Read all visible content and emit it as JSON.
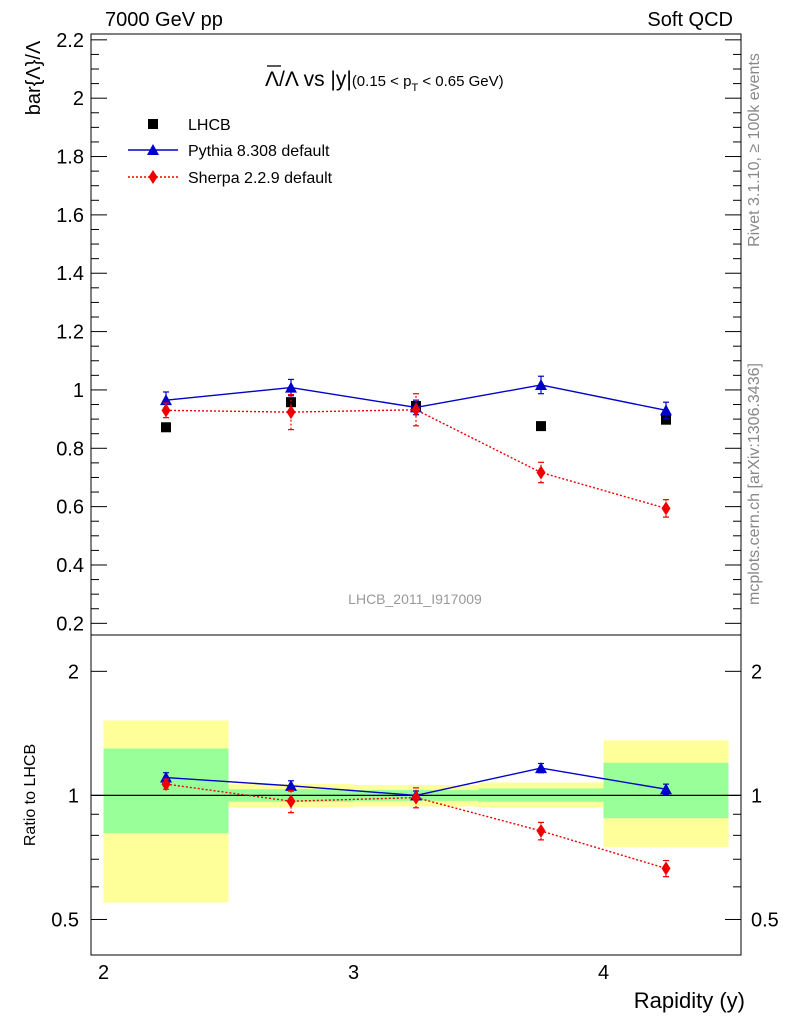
{
  "header": {
    "energy_label": "7000 GeV pp",
    "category_label": "Soft QCD"
  },
  "side_labels": {
    "rivet": "Rivet 3.1.10, ≥ 100k events",
    "mcplots": "mcplots.cern.ch [arXiv:1306.3436]"
  },
  "watermark": "LHCB_2011_I917009",
  "colors": {
    "data": "#000000",
    "pythia": "#0000cc",
    "sherpa": "#ee0000",
    "band_inner": "#99ff99",
    "band_outer": "#ffff99",
    "watermark": "#999999"
  },
  "chart_data": [
    {
      "panel": "main",
      "type": "scatter",
      "title_main": "Λ/Λ vs |y|",
      "title_cut": "(0.15 < p",
      "title_cut_sub": "T",
      "title_cut_end": " < 0.65 GeV)",
      "ylabel": "bar{Λ}/Λ",
      "ylim": [
        0.16,
        2.22
      ],
      "yticks": [
        0.2,
        0.4,
        0.6,
        0.8,
        1,
        1.2,
        1.4,
        1.6,
        1.8,
        2,
        2.2
      ],
      "yticks_text": [
        "0.2",
        "0.4",
        "0.6",
        "0.8",
        "1",
        "1.2",
        "1.4",
        "1.6",
        "1.8",
        "2",
        "2.2"
      ],
      "xlim": [
        1.95,
        4.55
      ],
      "series": [
        {
          "name": "LHCB",
          "style": "square",
          "x": [
            2.25,
            2.75,
            3.25,
            3.75,
            4.25
          ],
          "values": [
            0.872,
            0.958,
            0.945,
            0.876,
            0.898
          ]
        },
        {
          "name": "Pythia 8.308 default",
          "style": "triangle",
          "x": [
            2.25,
            2.75,
            3.25,
            3.75,
            4.25
          ],
          "values": [
            0.965,
            1.008,
            0.94,
            1.017,
            0.93
          ],
          "err": [
            0.028,
            0.028,
            0.025,
            0.03,
            0.028
          ]
        },
        {
          "name": "Sherpa 2.2.9 default",
          "style": "diamond",
          "x": [
            2.25,
            2.75,
            3.25,
            3.75,
            4.25
          ],
          "values": [
            0.93,
            0.924,
            0.932,
            0.717,
            0.594
          ],
          "err": [
            0.025,
            0.06,
            0.055,
            0.035,
            0.03
          ]
        }
      ]
    },
    {
      "panel": "ratio",
      "type": "scatter",
      "ylabel": "Ratio to LHCB",
      "xlabel": "Rapidity (y)",
      "ylim": [
        0.41,
        2.45
      ],
      "yscale": "log",
      "yticks": [
        0.5,
        1,
        2
      ],
      "yticks_text": [
        "0.5",
        "1",
        "2"
      ],
      "xlim": [
        1.95,
        4.55
      ],
      "xticks": [
        2,
        3,
        4
      ],
      "xticks_text": [
        "2",
        "3",
        "4"
      ],
      "bands": [
        {
          "xlo": 2.0,
          "xhi": 2.5,
          "inner": [
            0.81,
            1.3
          ],
          "outer": [
            0.55,
            1.52
          ]
        },
        {
          "xlo": 2.5,
          "xhi": 3.0,
          "inner": [
            0.965,
            1.035
          ],
          "outer": [
            0.935,
            1.065
          ]
        },
        {
          "xlo": 3.0,
          "xhi": 3.5,
          "inner": [
            0.97,
            1.03
          ],
          "outer": [
            0.94,
            1.06
          ]
        },
        {
          "xlo": 3.5,
          "xhi": 4.0,
          "inner": [
            0.965,
            1.04
          ],
          "outer": [
            0.935,
            1.075
          ]
        },
        {
          "xlo": 4.0,
          "xhi": 4.5,
          "inner": [
            0.88,
            1.2
          ],
          "outer": [
            0.75,
            1.36
          ]
        }
      ],
      "series": [
        {
          "name": "Pythia 8.308 default",
          "style": "triangle",
          "x": [
            2.25,
            2.75,
            3.25,
            3.75,
            4.25
          ],
          "values": [
            1.105,
            1.055,
            1.0,
            1.165,
            1.035
          ],
          "err": [
            0.03,
            0.03,
            0.025,
            0.03,
            0.03
          ]
        },
        {
          "name": "Sherpa 2.2.9 default",
          "style": "diamond",
          "x": [
            2.25,
            2.75,
            3.25,
            3.75,
            4.25
          ],
          "values": [
            1.065,
            0.968,
            0.988,
            0.82,
            0.665
          ],
          "err": [
            0.03,
            0.06,
            0.055,
            0.04,
            0.03
          ]
        }
      ]
    }
  ]
}
